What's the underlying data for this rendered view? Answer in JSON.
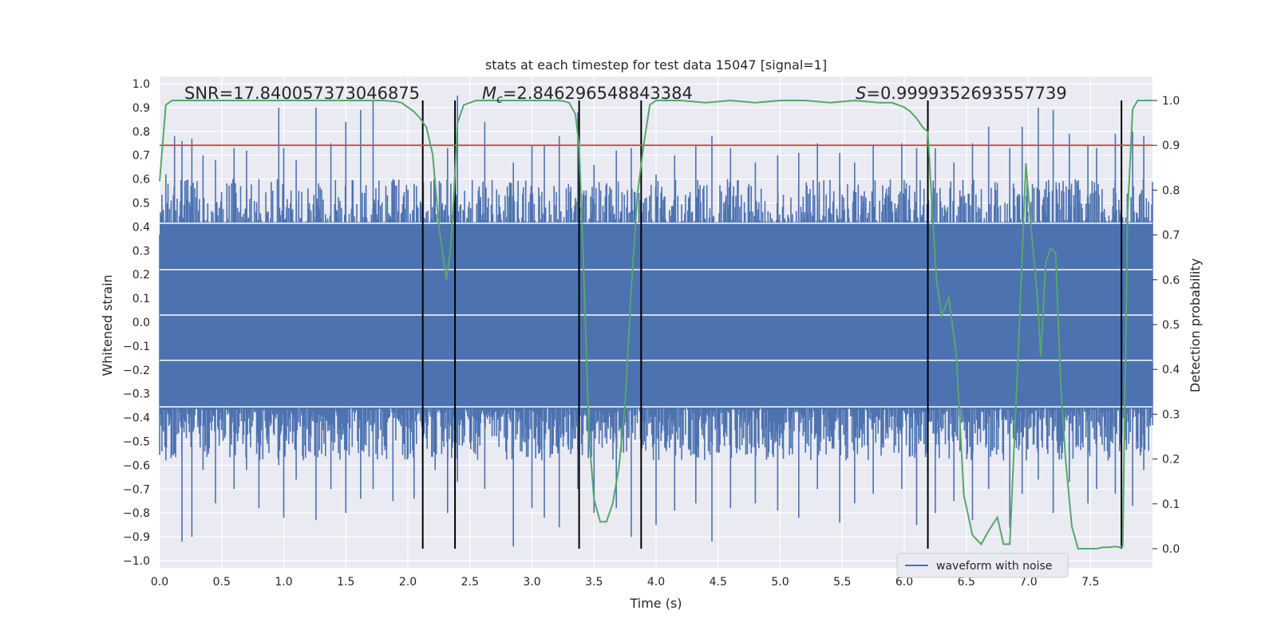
{
  "chart_data": {
    "type": "line",
    "title": "stats at each timestep for test data 15047 [signal=1]",
    "xlabel": "Time (s)",
    "ylabel_left": "Whitened strain",
    "ylabel_right": "Detection probability",
    "xlim": [
      0.0,
      8.0
    ],
    "ylim_left": [
      -1.03,
      1.03
    ],
    "ylim_right": [
      0.0,
      1.0
    ],
    "x_ticks": [
      "0.0",
      "0.5",
      "1.0",
      "1.5",
      "2.0",
      "2.5",
      "3.0",
      "3.5",
      "4.0",
      "4.5",
      "5.0",
      "5.5",
      "6.0",
      "6.5",
      "7.0",
      "7.5"
    ],
    "y_ticks_left": [
      "1.0",
      "0.9",
      "0.8",
      "0.7",
      "0.6",
      "0.5",
      "0.4",
      "0.3",
      "0.2",
      "0.1",
      "0.0",
      "−0.1",
      "−0.2",
      "−0.3",
      "−0.4",
      "−0.5",
      "−0.6",
      "−0.7",
      "−0.8",
      "−0.9",
      "−1.0"
    ],
    "y_ticks_right": [
      "1.0",
      "0.9",
      "0.8",
      "0.7",
      "0.6",
      "0.5",
      "0.4",
      "0.3",
      "0.2",
      "0.1",
      "0.0"
    ],
    "threshold": {
      "value": 0.9,
      "axis": "right",
      "color": "#c44e52"
    },
    "annotations": {
      "snr": "SNR=17.840057373046875",
      "mc_symbol": "M",
      "mc_sub": "c",
      "mc_value": "=2.846296548843384",
      "s_symbol": "S",
      "s_value": "=0.9999352693557739"
    },
    "vertical_lines": [
      2.12,
      2.38,
      3.38,
      3.88,
      6.19,
      7.75
    ],
    "series": [
      {
        "name": "waveform with noise",
        "axis": "left",
        "color": "#4c72b0",
        "peaks": [
          [
            0.05,
            0.62,
            -0.58
          ],
          [
            0.12,
            0.78,
            -0.55
          ],
          [
            0.18,
            0.76,
            -0.92
          ],
          [
            0.26,
            0.77,
            -0.9
          ],
          [
            0.35,
            0.7,
            -0.62
          ],
          [
            0.45,
            0.68,
            -0.76
          ],
          [
            0.6,
            0.73,
            -0.7
          ],
          [
            0.7,
            0.72,
            -0.62
          ],
          [
            0.8,
            0.6,
            -0.78
          ],
          [
            0.96,
            0.9,
            -0.6
          ],
          [
            1.0,
            0.73,
            -0.82
          ],
          [
            1.1,
            0.68,
            -0.66
          ],
          [
            1.26,
            0.9,
            -0.83
          ],
          [
            1.38,
            0.75,
            -0.7
          ],
          [
            1.5,
            0.84,
            -0.8
          ],
          [
            1.62,
            0.89,
            -0.74
          ],
          [
            1.72,
            0.93,
            -0.7
          ],
          [
            1.88,
            0.6,
            -0.75
          ],
          [
            2.05,
            0.58,
            -0.74
          ],
          [
            2.22,
            0.6,
            -0.62
          ],
          [
            2.32,
            0.73,
            -0.8
          ],
          [
            2.4,
            0.95,
            -0.67
          ],
          [
            2.62,
            0.84,
            -0.7
          ],
          [
            2.85,
            0.67,
            -0.94
          ],
          [
            3.0,
            0.74,
            -0.78
          ],
          [
            3.1,
            0.74,
            -0.82
          ],
          [
            3.22,
            0.78,
            -0.86
          ],
          [
            3.37,
            0.88,
            -0.7
          ],
          [
            3.5,
            0.66,
            -0.8
          ],
          [
            3.68,
            0.72,
            -0.78
          ],
          [
            3.8,
            0.73,
            -0.9
          ],
          [
            4.0,
            0.62,
            -0.85
          ],
          [
            4.15,
            0.7,
            -0.79
          ],
          [
            4.32,
            0.74,
            -0.76
          ],
          [
            4.45,
            0.78,
            -0.92
          ],
          [
            4.6,
            0.73,
            -0.78
          ],
          [
            4.8,
            0.67,
            -0.76
          ],
          [
            4.98,
            0.7,
            -0.79
          ],
          [
            5.15,
            0.71,
            -0.82
          ],
          [
            5.3,
            0.75,
            -0.7
          ],
          [
            5.48,
            0.71,
            -0.84
          ],
          [
            5.6,
            0.67,
            -0.76
          ],
          [
            5.75,
            0.74,
            -0.72
          ],
          [
            5.98,
            0.75,
            -0.7
          ],
          [
            6.1,
            0.73,
            -0.85
          ],
          [
            6.25,
            0.73,
            -0.8
          ],
          [
            6.4,
            0.67,
            -0.75
          ],
          [
            6.55,
            0.75,
            -0.83
          ],
          [
            6.68,
            0.82,
            -0.7
          ],
          [
            6.85,
            0.73,
            -0.86
          ],
          [
            6.95,
            0.82,
            -0.72
          ],
          [
            7.08,
            0.9,
            -0.66
          ],
          [
            7.2,
            0.89,
            -0.8
          ],
          [
            7.33,
            0.79,
            -0.67
          ],
          [
            7.48,
            0.74,
            -0.76
          ],
          [
            7.55,
            0.73,
            -0.7
          ],
          [
            7.7,
            0.79,
            -0.72
          ],
          [
            7.84,
            0.8,
            -0.77
          ],
          [
            7.93,
            0.78,
            -0.62
          ]
        ]
      },
      {
        "name": "detection probability",
        "axis": "right",
        "color": "#55a868",
        "x": [
          0.0,
          0.05,
          0.1,
          0.2,
          0.4,
          0.6,
          0.8,
          1.0,
          1.2,
          1.4,
          1.6,
          1.8,
          1.9,
          1.95,
          2.0,
          2.05,
          2.1,
          2.15,
          2.2,
          2.25,
          2.28,
          2.31,
          2.34,
          2.37,
          2.4,
          2.45,
          2.5,
          2.55,
          2.6,
          2.8,
          3.0,
          3.1,
          3.2,
          3.25,
          3.3,
          3.35,
          3.38,
          3.42,
          3.46,
          3.5,
          3.55,
          3.6,
          3.65,
          3.7,
          3.75,
          3.8,
          3.85,
          3.9,
          3.95,
          4.0,
          4.2,
          4.4,
          4.6,
          4.8,
          5.0,
          5.2,
          5.4,
          5.6,
          5.8,
          5.9,
          5.95,
          6.0,
          6.05,
          6.1,
          6.15,
          6.19,
          6.22,
          6.26,
          6.3,
          6.36,
          6.42,
          6.48,
          6.55,
          6.62,
          6.68,
          6.75,
          6.8,
          6.85,
          6.92,
          6.98,
          7.02,
          7.07,
          7.1,
          7.14,
          7.18,
          7.22,
          7.26,
          7.3,
          7.35,
          7.4,
          7.45,
          7.5,
          7.55,
          7.6,
          7.65,
          7.7,
          7.74,
          7.76,
          7.8,
          7.84,
          7.88,
          7.92,
          7.96,
          8.0
        ],
        "y": [
          0.82,
          0.99,
          1.0,
          1.0,
          1.0,
          1.0,
          1.0,
          1.0,
          1.0,
          1.0,
          1.0,
          1.0,
          0.998,
          0.995,
          0.985,
          0.975,
          0.96,
          0.94,
          0.88,
          0.72,
          0.66,
          0.6,
          0.66,
          0.78,
          0.95,
          0.99,
          0.995,
          1.0,
          1.0,
          1.0,
          1.0,
          1.0,
          1.0,
          0.999,
          0.995,
          0.97,
          0.9,
          0.6,
          0.25,
          0.11,
          0.06,
          0.06,
          0.1,
          0.18,
          0.32,
          0.58,
          0.79,
          0.9,
          0.99,
          1.0,
          1.0,
          0.995,
          1.0,
          0.995,
          1.0,
          1.0,
          0.995,
          1.0,
          0.995,
          0.995,
          0.99,
          0.985,
          0.975,
          0.96,
          0.94,
          0.93,
          0.78,
          0.6,
          0.52,
          0.56,
          0.43,
          0.12,
          0.03,
          0.01,
          0.04,
          0.07,
          0.01,
          0.01,
          0.45,
          0.86,
          0.72,
          0.57,
          0.43,
          0.64,
          0.67,
          0.66,
          0.37,
          0.2,
          0.05,
          0.0,
          0.0,
          0.0,
          0.0,
          0.003,
          0.003,
          0.005,
          0.003,
          0.005,
          0.75,
          0.98,
          1.0,
          1.0,
          1.0,
          1.0
        ]
      }
    ]
  }
}
